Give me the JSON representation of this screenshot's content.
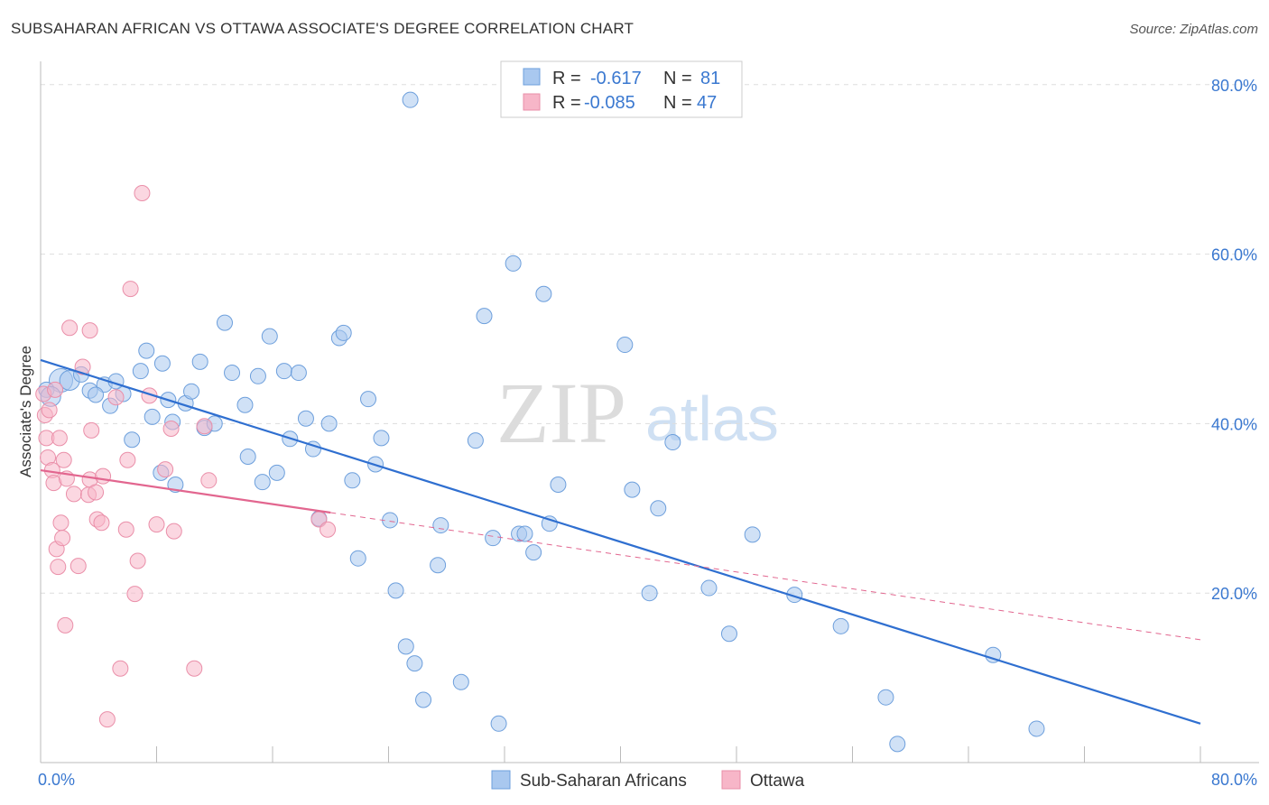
{
  "header": {
    "title": "SUBSAHARAN AFRICAN VS OTTAWA ASSOCIATE'S DEGREE CORRELATION CHART",
    "source": "Source: ZipAtlas.com"
  },
  "watermark": {
    "zip": "ZIP",
    "atlas": "atlas"
  },
  "legend_box": {
    "rows": [
      {
        "r_label": "R =",
        "r_value": "-0.617",
        "n_label": "N =",
        "n_value": "81",
        "color": "#a9c8ef"
      },
      {
        "r_label": "R =",
        "r_value": "-0.085",
        "n_label": "N =",
        "n_value": "47",
        "color": "#f7b6c8"
      }
    ]
  },
  "bottom_legend": [
    {
      "label": "Sub-Saharan Africans",
      "color": "#a9c8ef"
    },
    {
      "label": "Ottawa",
      "color": "#f7b6c8"
    }
  ],
  "chart_data": {
    "type": "scatter",
    "title": "SUBSAHARAN AFRICAN VS OTTAWA ASSOCIATE'S DEGREE CORRELATION CHART",
    "xlabel": "",
    "ylabel": "Associate's Degree",
    "xlim": [
      0,
      80
    ],
    "ylim": [
      0,
      82
    ],
    "x_tick_labels": [
      "0.0%",
      "80.0%"
    ],
    "y_tick_labels": [
      "20.0%",
      "40.0%",
      "60.0%",
      "80.0%"
    ],
    "y_ticks": [
      20,
      40,
      60,
      80
    ],
    "grid": true,
    "colors": {
      "blue_fill": "#a9c8ef",
      "blue_stroke": "#6d9fdc",
      "blue_line": "#2f6fd0",
      "pink_fill": "#f7b6c8",
      "pink_stroke": "#ea8fa9",
      "pink_line": "#e2668f",
      "axis_text": "#3a78d0",
      "grid": "#dddddd"
    },
    "series": [
      {
        "name": "Sub-Saharan Africans",
        "points": [
          [
            1.4,
            45.1,
            3
          ],
          [
            2.0,
            45.1,
            2
          ],
          [
            2.8,
            45.8,
            1
          ],
          [
            3.4,
            43.9,
            1
          ],
          [
            4.4,
            44.6,
            1
          ],
          [
            3.8,
            43.4,
            1
          ],
          [
            4.8,
            42.1,
            1
          ],
          [
            5.7,
            43.5,
            1
          ],
          [
            6.3,
            38.1,
            1
          ],
          [
            6.9,
            46.2,
            1
          ],
          [
            7.3,
            48.6,
            1
          ],
          [
            7.7,
            40.8,
            1
          ],
          [
            8.4,
            47.1,
            1
          ],
          [
            8.8,
            42.8,
            1
          ],
          [
            9.1,
            40.2,
            1
          ],
          [
            8.3,
            34.2,
            1
          ],
          [
            9.3,
            32.8,
            1
          ],
          [
            10.0,
            42.4,
            1
          ],
          [
            10.4,
            43.8,
            1
          ],
          [
            11.0,
            47.3,
            1
          ],
          [
            11.3,
            39.5,
            1
          ],
          [
            12.7,
            51.9,
            1
          ],
          [
            13.2,
            46.0,
            1
          ],
          [
            14.1,
            42.2,
            1
          ],
          [
            14.3,
            36.1,
            1
          ],
          [
            15.0,
            45.6,
            1
          ],
          [
            15.3,
            33.1,
            1
          ],
          [
            15.8,
            50.3,
            1
          ],
          [
            16.3,
            34.2,
            1
          ],
          [
            16.8,
            46.2,
            1
          ],
          [
            17.2,
            38.2,
            1
          ],
          [
            17.8,
            46.0,
            1
          ],
          [
            18.3,
            40.6,
            1
          ],
          [
            18.8,
            37.0,
            1
          ],
          [
            19.2,
            28.8,
            1
          ],
          [
            19.9,
            40.0,
            1
          ],
          [
            20.6,
            50.1,
            1
          ],
          [
            20.9,
            50.7,
            1
          ],
          [
            21.5,
            33.3,
            1
          ],
          [
            21.9,
            24.1,
            1
          ],
          [
            22.6,
            42.9,
            1
          ],
          [
            23.1,
            35.2,
            1
          ],
          [
            23.5,
            38.3,
            1
          ],
          [
            24.1,
            28.6,
            1
          ],
          [
            24.5,
            20.3,
            1
          ],
          [
            25.2,
            13.7,
            1
          ],
          [
            25.5,
            78.2,
            1
          ],
          [
            25.8,
            11.7,
            1
          ],
          [
            26.4,
            7.4,
            1
          ],
          [
            27.4,
            23.3,
            1
          ],
          [
            27.6,
            28.0,
            1
          ],
          [
            29.0,
            9.5,
            1
          ],
          [
            30.0,
            38.0,
            1
          ],
          [
            30.6,
            52.7,
            1
          ],
          [
            31.2,
            26.5,
            1
          ],
          [
            31.6,
            4.6,
            1
          ],
          [
            32.6,
            58.9,
            1
          ],
          [
            33.0,
            27.0,
            1
          ],
          [
            33.4,
            27.0,
            1
          ],
          [
            34.0,
            24.8,
            1
          ],
          [
            34.7,
            55.3,
            1
          ],
          [
            35.1,
            28.2,
            1
          ],
          [
            35.7,
            32.8,
            1
          ],
          [
            40.3,
            49.3,
            1
          ],
          [
            40.8,
            32.2,
            1
          ],
          [
            42.0,
            20.0,
            1
          ],
          [
            42.6,
            30.0,
            1
          ],
          [
            43.6,
            37.8,
            1
          ],
          [
            46.1,
            20.6,
            1
          ],
          [
            47.5,
            15.2,
            1
          ],
          [
            49.1,
            26.9,
            1
          ],
          [
            52.0,
            19.8,
            1
          ],
          [
            55.2,
            16.1,
            1
          ],
          [
            58.3,
            7.7,
            1
          ],
          [
            59.1,
            2.2,
            1
          ],
          [
            65.7,
            12.7,
            1
          ],
          [
            68.7,
            4.0,
            1
          ],
          [
            0.4,
            44.0,
            1
          ],
          [
            0.7,
            43.2,
            2
          ],
          [
            5.2,
            45.0,
            1
          ],
          [
            12.0,
            40.0,
            1
          ]
        ]
      },
      {
        "name": "Ottawa",
        "points": [
          [
            0.2,
            43.5,
            1
          ],
          [
            0.3,
            41.0,
            1
          ],
          [
            0.4,
            38.3,
            1
          ],
          [
            0.5,
            36.0,
            1
          ],
          [
            0.6,
            41.6,
            1
          ],
          [
            0.8,
            34.5,
            1
          ],
          [
            0.9,
            33.0,
            1
          ],
          [
            1.0,
            44.0,
            1
          ],
          [
            1.1,
            25.2,
            1
          ],
          [
            1.2,
            23.1,
            1
          ],
          [
            1.3,
            38.3,
            1
          ],
          [
            1.4,
            28.3,
            1
          ],
          [
            1.5,
            26.5,
            1
          ],
          [
            1.6,
            35.7,
            1
          ],
          [
            1.7,
            16.2,
            1
          ],
          [
            1.8,
            33.5,
            1
          ],
          [
            2.0,
            51.3,
            1
          ],
          [
            2.3,
            31.7,
            1
          ],
          [
            2.6,
            23.2,
            1
          ],
          [
            2.9,
            46.7,
            1
          ],
          [
            3.3,
            31.6,
            1
          ],
          [
            3.4,
            33.4,
            1
          ],
          [
            3.5,
            39.2,
            1
          ],
          [
            3.8,
            31.9,
            1
          ],
          [
            3.9,
            28.7,
            1
          ],
          [
            3.4,
            51.0,
            1
          ],
          [
            4.2,
            28.3,
            1
          ],
          [
            4.3,
            33.8,
            1
          ],
          [
            4.6,
            5.1,
            1
          ],
          [
            5.2,
            43.1,
            1
          ],
          [
            5.5,
            11.1,
            1
          ],
          [
            5.9,
            27.5,
            1
          ],
          [
            6.0,
            35.7,
            1
          ],
          [
            6.2,
            55.9,
            1
          ],
          [
            6.5,
            19.9,
            1
          ],
          [
            6.7,
            23.8,
            1
          ],
          [
            7.0,
            67.2,
            1
          ],
          [
            7.5,
            43.3,
            1
          ],
          [
            8.0,
            28.1,
            1
          ],
          [
            8.6,
            34.6,
            1
          ],
          [
            9.0,
            39.4,
            1
          ],
          [
            9.2,
            27.3,
            1
          ],
          [
            10.6,
            11.1,
            1
          ],
          [
            11.3,
            39.7,
            1
          ],
          [
            11.6,
            33.3,
            1
          ],
          [
            19.2,
            28.7,
            1
          ],
          [
            19.8,
            27.5,
            1
          ]
        ]
      }
    ],
    "trendlines": [
      {
        "series": "Sub-Saharan Africans",
        "x": [
          0,
          80
        ],
        "y": [
          47.5,
          4.6
        ],
        "style": "solid"
      },
      {
        "series": "Ottawa",
        "x": [
          0,
          20
        ],
        "y": [
          34.5,
          29.5
        ],
        "style": "solid"
      },
      {
        "series": "Ottawa",
        "x": [
          20,
          80
        ],
        "y": [
          29.5,
          14.5
        ],
        "style": "dashed"
      }
    ]
  }
}
